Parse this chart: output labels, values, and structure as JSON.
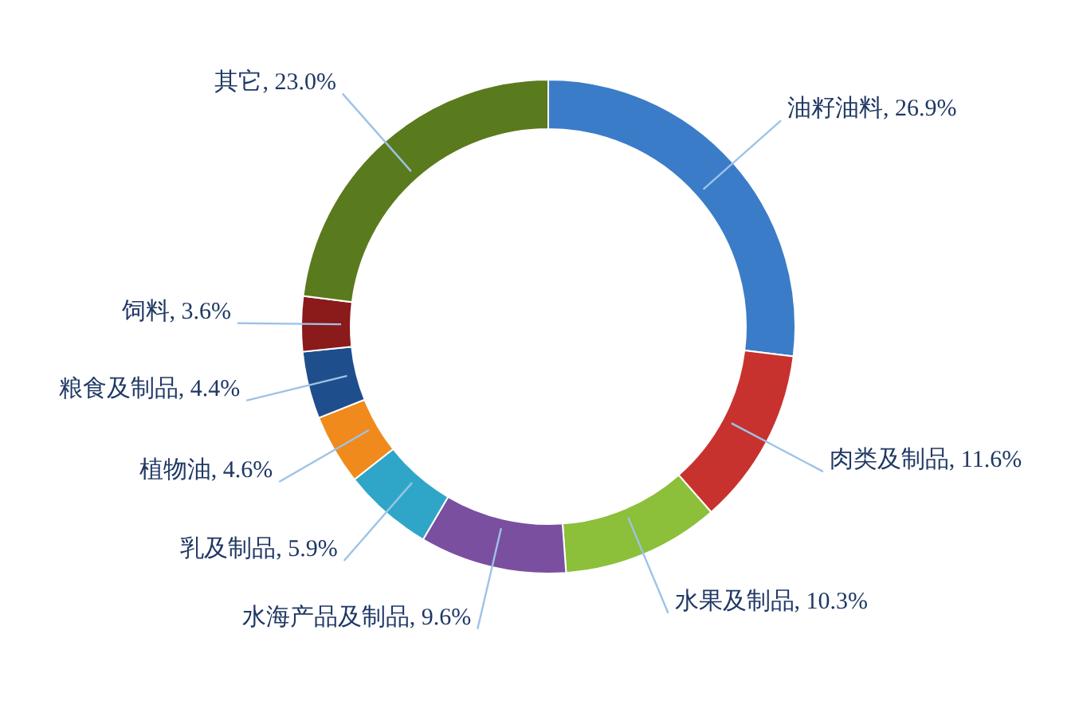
{
  "chart_data": {
    "type": "donut",
    "categories": [
      "油籽油料",
      "肉类及制品",
      "水果及制品",
      "水海产品及制品",
      "乳及制品",
      "植物油",
      "粮食及制品",
      "饲料",
      "其它"
    ],
    "values": [
      26.9,
      11.6,
      10.3,
      9.6,
      5.9,
      4.6,
      4.4,
      3.6,
      23.0
    ],
    "value_labels": [
      "26.9%",
      "11.6%",
      "10.3%",
      "9.6%",
      "5.9%",
      "4.6%",
      "4.4%",
      "3.6%",
      "23.0%"
    ],
    "colors": [
      "#3a7cc8",
      "#c8322e",
      "#8cbf3a",
      "#7a4fa0",
      "#2fa6c8",
      "#f08a1c",
      "#1f4e8c",
      "#8b1a1a",
      "#5a7a1e"
    ]
  }
}
